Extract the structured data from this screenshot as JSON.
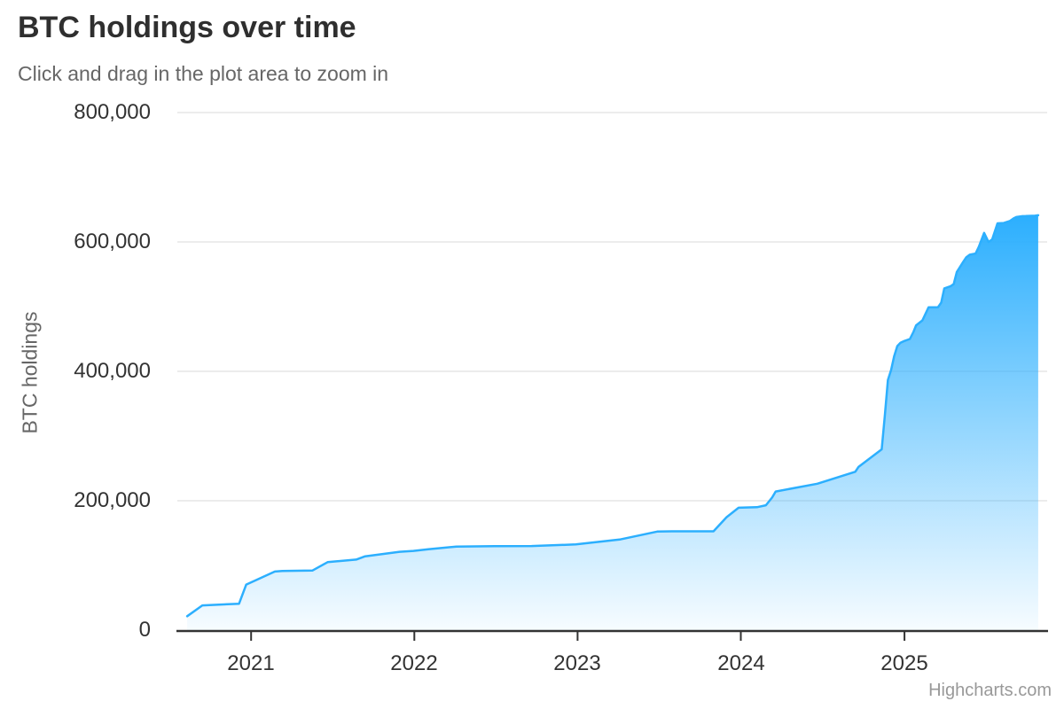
{
  "chart": {
    "title": "BTC holdings over time",
    "subtitle": "Click and drag in the plot area to zoom in",
    "y_axis_title": "BTC holdings",
    "credits": "Highcharts.com",
    "colors": {
      "series_line": "#2caffe",
      "area_gradient_top": "#2caffe",
      "gridline": "#e6e6e6",
      "axis_line": "#333333",
      "title_text": "#2f2f2f",
      "subtitle_text": "#666666",
      "label_text": "#333333",
      "credits_text": "#999999"
    }
  },
  "chart_data": {
    "type": "area",
    "title": "BTC holdings over time",
    "subtitle": "Click and drag in the plot area to zoom in",
    "xlabel": "",
    "ylabel": "BTC holdings",
    "x_type": "datetime",
    "grid": true,
    "legend": false,
    "xlim": [
      "2020-07-20",
      "2025-11-16"
    ],
    "ylim": [
      0,
      800000
    ],
    "y_ticks": [
      {
        "value": 0,
        "label": "0"
      },
      {
        "value": 200000,
        "label": "200,000"
      },
      {
        "value": 400000,
        "label": "400,000"
      },
      {
        "value": 600000,
        "label": "600,000"
      },
      {
        "value": 800000,
        "label": "800,000"
      }
    ],
    "x_ticks": [
      {
        "date": "2021-01-01",
        "label": "2021"
      },
      {
        "date": "2022-01-01",
        "label": "2022"
      },
      {
        "date": "2023-01-01",
        "label": "2023"
      },
      {
        "date": "2024-01-01",
        "label": "2024"
      },
      {
        "date": "2025-01-01",
        "label": "2025"
      }
    ],
    "series": [
      {
        "name": "BTC holdings",
        "color": "#2caffe",
        "points": [
          [
            "2020-08-11",
            21454
          ],
          [
            "2020-09-14",
            38250
          ],
          [
            "2020-12-05",
            40824
          ],
          [
            "2020-12-21",
            70470
          ],
          [
            "2021-02-23",
            90531
          ],
          [
            "2021-03-12",
            91326
          ],
          [
            "2021-05-18",
            92079
          ],
          [
            "2021-06-21",
            105085
          ],
          [
            "2021-08-24",
            108992
          ],
          [
            "2021-09-13",
            114042
          ],
          [
            "2021-11-29",
            121044
          ],
          [
            "2021-12-30",
            122478
          ],
          [
            "2022-02-01",
            125051
          ],
          [
            "2022-04-05",
            129218
          ],
          [
            "2022-06-29",
            129699
          ],
          [
            "2022-09-20",
            130000
          ],
          [
            "2022-12-28",
            132500
          ],
          [
            "2023-04-05",
            140000
          ],
          [
            "2023-06-28",
            152333
          ],
          [
            "2023-07-31",
            152800
          ],
          [
            "2023-11-01",
            152800
          ],
          [
            "2023-11-30",
            174530
          ],
          [
            "2023-12-27",
            189150
          ],
          [
            "2024-02-06",
            190000
          ],
          [
            "2024-02-26",
            193000
          ],
          [
            "2024-03-11",
            205000
          ],
          [
            "2024-03-19",
            214246
          ],
          [
            "2024-06-20",
            226331
          ],
          [
            "2024-09-13",
            244800
          ],
          [
            "2024-09-20",
            252220
          ],
          [
            "2024-11-11",
            279420
          ],
          [
            "2024-11-18",
            331200
          ],
          [
            "2024-11-25",
            386700
          ],
          [
            "2024-12-02",
            402100
          ],
          [
            "2024-12-09",
            423650
          ],
          [
            "2024-12-16",
            439000
          ],
          [
            "2024-12-23",
            444262
          ],
          [
            "2024-12-30",
            446400
          ],
          [
            "2025-01-13",
            450000
          ],
          [
            "2025-01-21",
            461000
          ],
          [
            "2025-01-27",
            471107
          ],
          [
            "2025-02-10",
            478740
          ],
          [
            "2025-02-24",
            499096
          ],
          [
            "2025-03-17",
            499226
          ],
          [
            "2025-03-24",
            506137
          ],
          [
            "2025-03-31",
            528185
          ],
          [
            "2025-04-14",
            531644
          ],
          [
            "2025-04-21",
            534741
          ],
          [
            "2025-04-28",
            553555
          ],
          [
            "2025-05-12",
            568840
          ],
          [
            "2025-05-19",
            576230
          ],
          [
            "2025-05-27",
            580250
          ],
          [
            "2025-06-09",
            582000
          ],
          [
            "2025-06-16",
            592100
          ],
          [
            "2025-06-28",
            614000
          ],
          [
            "2025-07-08",
            600000
          ],
          [
            "2025-07-16",
            604000
          ],
          [
            "2025-07-28",
            628791
          ],
          [
            "2025-08-11",
            629376
          ],
          [
            "2025-08-25",
            632457
          ],
          [
            "2025-09-02",
            636505
          ],
          [
            "2025-09-08",
            638460
          ],
          [
            "2025-09-22",
            639835
          ],
          [
            "2025-09-29",
            640031
          ],
          [
            "2025-10-06",
            640250
          ],
          [
            "2025-10-20",
            640531
          ],
          [
            "2025-10-27",
            641205
          ]
        ]
      }
    ]
  }
}
